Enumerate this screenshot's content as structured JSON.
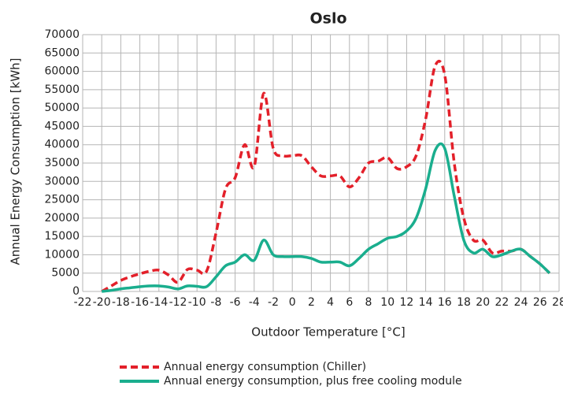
{
  "chart_data": {
    "type": "line",
    "title": "Oslo",
    "xlabel": "Outdoor Temperature [°C]",
    "ylabel": "Annual Energy Consumption [kWh]",
    "x": [
      -20,
      -19,
      -18,
      -17,
      -16,
      -15,
      -14,
      -13,
      -12,
      -11,
      -10,
      -9,
      -8,
      -7,
      -6,
      -5,
      -4,
      -3,
      -2,
      -1,
      0,
      1,
      2,
      3,
      4,
      5,
      6,
      7,
      8,
      9,
      10,
      11,
      12,
      13,
      14,
      15,
      16,
      17,
      18,
      19,
      20,
      21,
      22,
      23,
      24,
      25,
      26,
      27
    ],
    "series": [
      {
        "name": "Annual energy consumption (Chiller)",
        "color": "#e3202a",
        "dashed": true,
        "values": [
          0,
          1500,
          3000,
          4000,
          4800,
          5500,
          5800,
          4500,
          2500,
          6000,
          5800,
          5500,
          16000,
          28000,
          31000,
          40000,
          34000,
          54000,
          39000,
          37000,
          37000,
          37000,
          34000,
          31500,
          31500,
          31500,
          28500,
          31000,
          35000,
          35500,
          36500,
          33500,
          34000,
          37000,
          47000,
          61500,
          59000,
          35000,
          20000,
          14000,
          14000,
          10500,
          11000,
          11000,
          11500,
          9500,
          7500,
          5000
        ]
      },
      {
        "name": "Annual energy consumption, plus free cooling module",
        "color": "#1aae8e",
        "dashed": false,
        "values": [
          0,
          300,
          700,
          1000,
          1300,
          1500,
          1500,
          1200,
          700,
          1500,
          1400,
          1300,
          4000,
          7000,
          8000,
          10000,
          8500,
          14000,
          10000,
          9500,
          9500,
          9500,
          9000,
          8000,
          8000,
          8000,
          7000,
          9000,
          11500,
          13000,
          14500,
          15000,
          16500,
          20000,
          28000,
          38500,
          39000,
          26000,
          14000,
          10500,
          11500,
          9500,
          10000,
          11000,
          11500,
          9500,
          7500,
          5000
        ]
      }
    ],
    "xlim": [
      -22,
      28
    ],
    "xticks": [
      -22,
      -20,
      -18,
      -16,
      -14,
      -12,
      -10,
      -8,
      -6,
      -4,
      -2,
      0,
      2,
      4,
      6,
      8,
      10,
      12,
      14,
      16,
      18,
      20,
      22,
      24,
      26,
      28
    ],
    "ylim": [
      0,
      70000
    ],
    "yticks": [
      0,
      5000,
      10000,
      15000,
      20000,
      25000,
      30000,
      35000,
      40000,
      45000,
      50000,
      55000,
      60000,
      65000,
      70000
    ],
    "grid": true,
    "legend": "bottom"
  }
}
